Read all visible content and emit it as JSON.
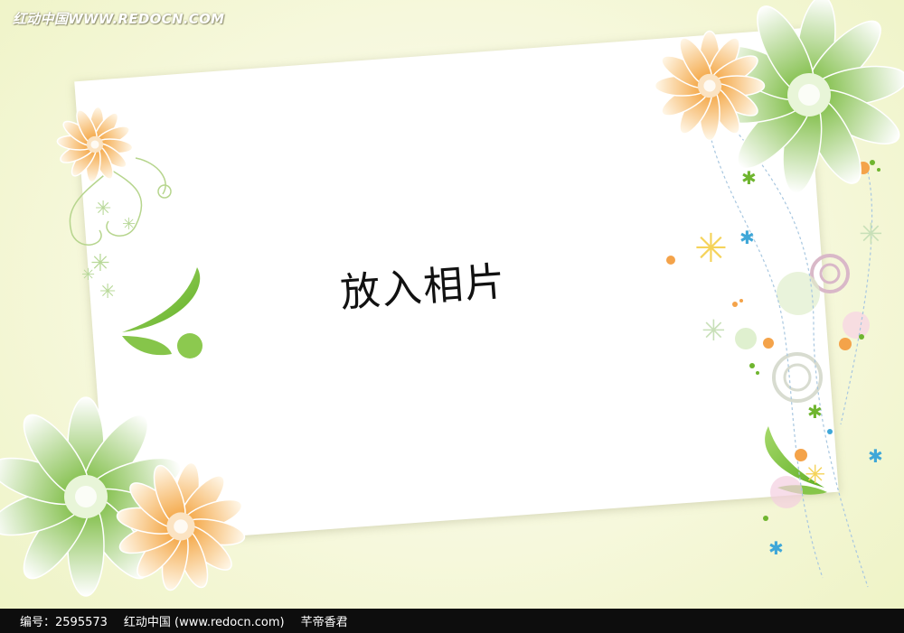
{
  "watermark": {
    "top_text": "红动中国WWW.REDOCN.COM"
  },
  "placeholder": {
    "text": "放入相片"
  },
  "footer": {
    "code_label": "编号：2595573",
    "site_label": "红动中国 (www.redocn.com)",
    "author_label": "芊帝香君"
  },
  "colors": {
    "leaf_green": "#7cc23f",
    "petal_orange": "#f6a33a",
    "background": "#f6f8dc"
  }
}
